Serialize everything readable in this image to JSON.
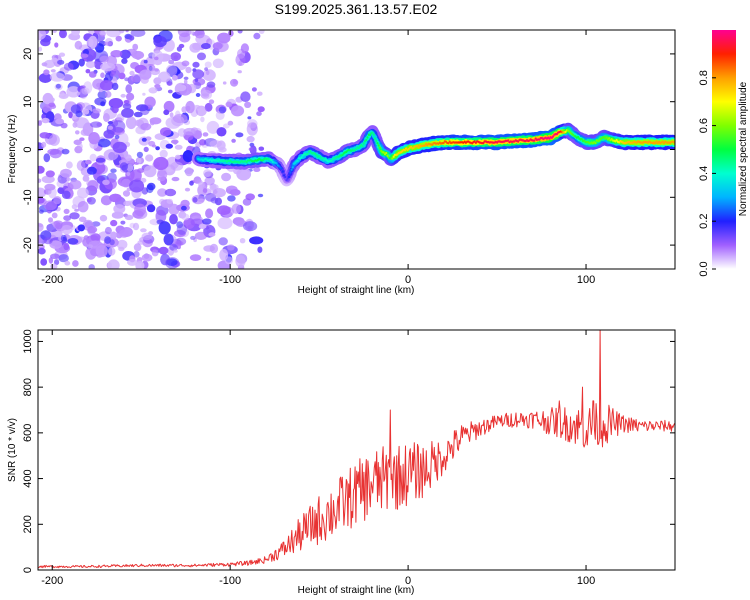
{
  "title": "S199.2025.361.13.57.E02",
  "chart_data": [
    {
      "type": "heatmap",
      "title": "S199.2025.361.13.57.E02",
      "xlabel": "Height of straight line (km)",
      "ylabel": "Frequency (Hz)",
      "xlim": [
        -208,
        150
      ],
      "ylim": [
        -25,
        25
      ],
      "x_ticks": [
        -200,
        -100,
        0,
        100
      ],
      "y_ticks": [
        -20,
        -10,
        0,
        10,
        20
      ],
      "colorbar": {
        "label": "Normalized spectral amplitude",
        "range": [
          0,
          1
        ],
        "ticks": [
          0.0,
          0.2,
          0.4,
          0.6,
          0.8
        ],
        "tick_labels": [
          "0.0",
          "0.2",
          "0.4",
          "0.6",
          "0.8"
        ]
      },
      "noise_region": {
        "x_range": [
          -208,
          -82
        ],
        "freq_range": [
          -25,
          25
        ],
        "amplitude": "low (0.0-0.2)"
      },
      "ridge": {
        "description": "Dominant frequency ridge",
        "x": [
          -118,
          -110,
          -100,
          -92,
          -85,
          -78,
          -72,
          -68,
          -64,
          -60,
          -55,
          -50,
          -45,
          -40,
          -35,
          -30,
          -25,
          -22,
          -20,
          -18,
          -15,
          -12,
          -10,
          -8,
          -5,
          0,
          10,
          20,
          30,
          40,
          50,
          60,
          70,
          80,
          85,
          90,
          95,
          100,
          105,
          110,
          120,
          130,
          140,
          150
        ],
        "y": [
          -2.0,
          -2.3,
          -2.5,
          -2.6,
          -2.2,
          -2.0,
          -3.5,
          -6.5,
          -3.0,
          -1.5,
          -0.5,
          -1.5,
          -2.5,
          -1.8,
          -0.5,
          0.0,
          1.0,
          3.0,
          3.5,
          2.0,
          -0.5,
          -1.0,
          -2.0,
          -1.5,
          -0.5,
          0.2,
          1.0,
          1.5,
          1.5,
          1.5,
          1.5,
          1.8,
          2.0,
          2.5,
          3.5,
          4.0,
          2.5,
          1.5,
          1.5,
          2.5,
          1.5,
          1.5,
          1.5,
          1.5
        ],
        "amplitude": [
          0.35,
          0.4,
          0.45,
          0.45,
          0.5,
          0.45,
          0.25,
          0.15,
          0.35,
          0.4,
          0.45,
          0.45,
          0.4,
          0.45,
          0.5,
          0.45,
          0.45,
          0.5,
          0.45,
          0.45,
          0.6,
          0.65,
          0.5,
          0.7,
          0.75,
          0.75,
          0.8,
          0.85,
          0.9,
          0.92,
          0.95,
          0.95,
          0.95,
          1.0,
          0.95,
          0.6,
          0.5,
          0.55,
          0.6,
          0.55,
          0.75,
          0.8,
          0.8,
          0.8
        ]
      }
    },
    {
      "type": "line",
      "xlabel": "Height of straight line (km)",
      "ylabel": "SNR (10 * v/v)",
      "xlim": [
        -208,
        150
      ],
      "ylim": [
        0,
        1050
      ],
      "x_ticks": [
        -200,
        -100,
        0,
        100
      ],
      "y_ticks": [
        0,
        200,
        400,
        600,
        800,
        1000
      ],
      "color": "#e83232",
      "series": [
        {
          "name": "SNR",
          "x": [
            -208,
            -180,
            -150,
            -120,
            -100,
            -90,
            -80,
            -70,
            -60,
            -50,
            -40,
            -30,
            -20,
            -10,
            0,
            10,
            20,
            30,
            40,
            50,
            60,
            70,
            80,
            90,
            100,
            110,
            120,
            130,
            140,
            150
          ],
          "value": [
            15,
            15,
            20,
            20,
            25,
            30,
            45,
            90,
            160,
            220,
            270,
            330,
            380,
            400,
            420,
            440,
            500,
            580,
            620,
            650,
            660,
            660,
            650,
            640,
            620,
            640,
            640,
            630,
            630,
            630
          ],
          "noise": [
            5,
            5,
            6,
            6,
            8,
            10,
            15,
            40,
            80,
            110,
            130,
            140,
            150,
            150,
            140,
            120,
            80,
            60,
            40,
            30,
            35,
            40,
            60,
            80,
            100,
            100,
            40,
            30,
            25,
            25
          ]
        }
      ],
      "spikes": [
        {
          "x": -10,
          "value": 700
        },
        {
          "x": 85,
          "value": 740
        },
        {
          "x": 98,
          "value": 800
        },
        {
          "x": 104,
          "value": 740
        },
        {
          "x": 108,
          "value": 1050
        }
      ]
    }
  ]
}
